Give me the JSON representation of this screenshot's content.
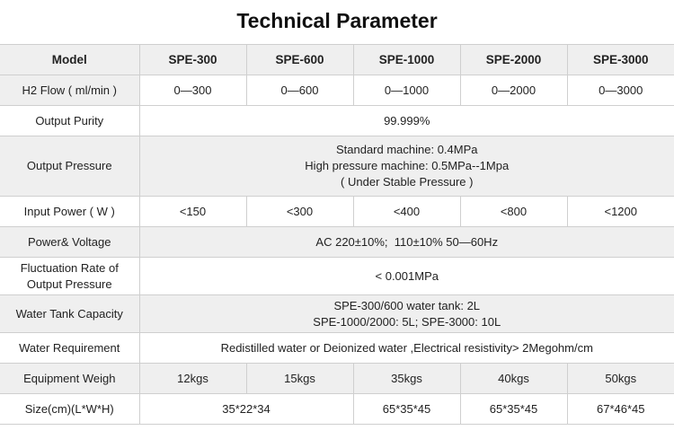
{
  "title": "Technical Parameter",
  "header": {
    "label": "Model",
    "models": [
      "SPE-300",
      "SPE-600",
      "SPE-1000",
      "SPE-2000",
      "SPE-3000"
    ]
  },
  "rows": {
    "h2_flow": {
      "label": "H2 Flow ( ml/min )",
      "values": [
        "0—300",
        "0—600",
        "0—1000",
        "0—2000",
        "0—3000"
      ]
    },
    "purity": {
      "label": "Output Purity",
      "value": "99.999%"
    },
    "pressure": {
      "label": "Output Pressure",
      "lines": [
        "Standard machine: 0.4MPa",
        "High pressure machine: 0.5MPa--1Mpa",
        "( Under Stable Pressure )"
      ]
    },
    "input_power": {
      "label": "Input Power ( W )",
      "values": [
        "<150",
        "<300",
        "<400",
        "<800",
        "<1200"
      ]
    },
    "voltage": {
      "label": "Power& Voltage",
      "value": "AC 220±10%;  110±10% 50—60Hz"
    },
    "fluctuation": {
      "label_lines": [
        "Fluctuation Rate of",
        "Output Pressure"
      ],
      "value": "< 0.001MPa"
    },
    "tank": {
      "label": "Water Tank Capacity",
      "lines": [
        "SPE-300/600 water tank: 2L",
        "SPE-1000/2000: 5L; SPE-3000: 10L"
      ]
    },
    "water": {
      "label": "Water Requirement",
      "value": "Redistilled water or Deionized water ,Electrical resistivity> 2Megohm/cm"
    },
    "weight": {
      "label": "Equipment Weigh",
      "values": [
        "12kgs",
        "15kgs",
        "35kgs",
        "40kgs",
        "50kgs"
      ]
    },
    "size": {
      "label": "Size(cm)(L*W*H)",
      "values": [
        "35*22*34",
        "65*35*45",
        "65*35*45",
        "67*46*45"
      ]
    }
  }
}
